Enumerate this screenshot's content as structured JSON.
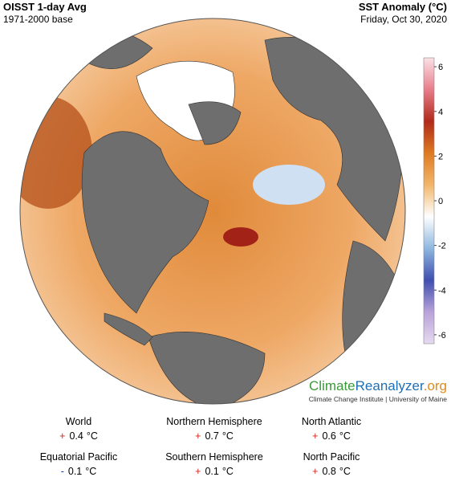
{
  "header": {
    "title": "OISST 1-day Avg",
    "subtitle": "1971-2000 base",
    "right_title": "SST Anomaly (°C)",
    "date": "Friday, Oct 30, 2020"
  },
  "colorbar": {
    "lim": [
      -6.4,
      6.4
    ],
    "ticks": [
      6,
      4,
      2,
      0,
      -2,
      -4,
      -6
    ],
    "colors": [
      "#e6d9f0",
      "#b9a2d9",
      "#3f4fb0",
      "#8fb7e0",
      "#ffffff",
      "#f2b66a",
      "#de7a22",
      "#b12a1a",
      "#e87d8a",
      "#fbe1e6"
    ]
  },
  "branding": {
    "parts": [
      {
        "text": "Climate",
        "color": "#3a9a3a"
      },
      {
        "text": "Reanalyzer",
        "color": "#1f6fb5"
      },
      {
        "text": ".org",
        "color": "#e08a1c"
      }
    ],
    "credit": "Climate Change Institute | University of Maine"
  },
  "stats": [
    {
      "name": "World",
      "sign": "+",
      "value": 0.4,
      "unit": "°C"
    },
    {
      "name": "Northern Hemisphere",
      "sign": "+",
      "value": 0.7,
      "unit": "°C"
    },
    {
      "name": "North Atlantic",
      "sign": "+",
      "value": 0.6,
      "unit": "°C"
    },
    {
      "name": "Equatorial Pacific",
      "sign": "-",
      "value": 0.1,
      "unit": "°C"
    },
    {
      "name": "Southern Hemisphere",
      "sign": "+",
      "value": 0.1,
      "unit": "°C"
    },
    {
      "name": "North Pacific",
      "sign": "+",
      "value": 0.8,
      "unit": "°C"
    }
  ]
}
